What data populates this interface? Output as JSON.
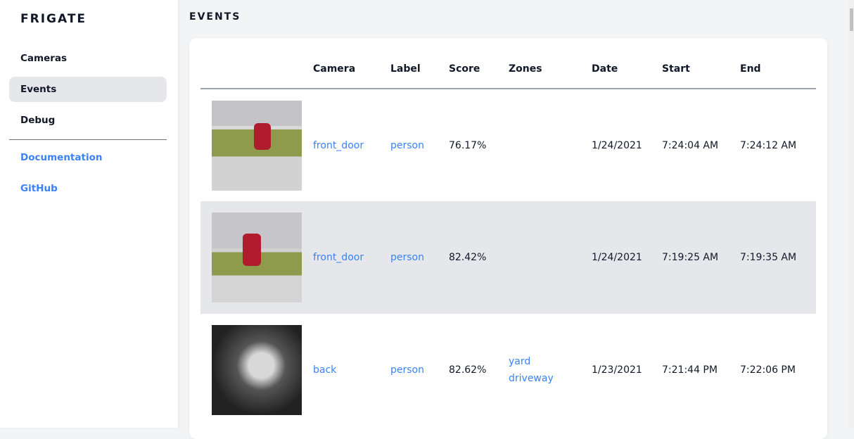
{
  "sidebar": {
    "brand": "FRIGATE",
    "items": [
      {
        "label": "Cameras"
      },
      {
        "label": "Events"
      },
      {
        "label": "Debug"
      }
    ],
    "links": [
      {
        "label": "Documentation"
      },
      {
        "label": "GitHub"
      }
    ]
  },
  "main": {
    "title": "EVENTS",
    "columns": [
      "",
      "Camera",
      "Label",
      "Score",
      "Zones",
      "Date",
      "Start",
      "End"
    ],
    "rows": [
      {
        "camera": "front_door",
        "label": "person",
        "score": "76.17%",
        "zones": [
          "",
          ""
        ],
        "date": "1/24/2021",
        "start": "7:24:04 AM",
        "end": "7:24:12 AM"
      },
      {
        "camera": "front_door",
        "label": "person",
        "score": "82.42%",
        "zones": [
          "",
          ""
        ],
        "date": "1/24/2021",
        "start": "7:19:25 AM",
        "end": "7:19:35 AM"
      },
      {
        "camera": "back",
        "label": "person",
        "score": "82.62%",
        "zones": [
          "yard",
          "driveway"
        ],
        "date": "1/23/2021",
        "start": "7:21:44 PM",
        "end": "7:22:06 PM"
      }
    ]
  },
  "colors": {
    "accent": "#3b82f6",
    "active_bg": "#e5e7eb"
  }
}
